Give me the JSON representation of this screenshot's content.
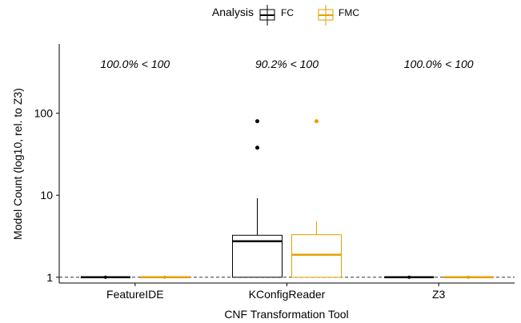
{
  "chart_data": {
    "type": "boxplot",
    "xlabel": "CNF Transformation Tool",
    "ylabel": "Model Count (log10, rel. to Z3)",
    "yscale": "log10",
    "ylim": [
      0.85,
      700
    ],
    "yticks": [
      {
        "value": 1,
        "label": "1"
      },
      {
        "value": 10,
        "label": "10"
      },
      {
        "value": 100,
        "label": "100"
      }
    ],
    "reference_line": {
      "value": 1,
      "style": "dashed"
    },
    "grid": false,
    "legend": {
      "title": "Analysis",
      "position": "top",
      "entries": [
        {
          "name": "FC",
          "color": "#000000"
        },
        {
          "name": "FMC",
          "color": "#E69F00"
        }
      ]
    },
    "categories": [
      "FeatureIDE",
      "KConfigReader",
      "Z3"
    ],
    "annotations": [
      "100.0% < 100",
      "90.2% < 100",
      "100.0% < 100"
    ],
    "series": [
      {
        "name": "FC",
        "color": "#000000",
        "boxes": [
          {
            "min": 1,
            "q1": 1,
            "median": 1,
            "q3": 1,
            "max": 1,
            "outliers": []
          },
          {
            "min": 1,
            "q1": 1,
            "median": 2.75,
            "q3": 3.25,
            "max": 9.2,
            "outliers": [
              38,
              80
            ]
          },
          {
            "min": 1,
            "q1": 1,
            "median": 1,
            "q3": 1,
            "max": 1,
            "outliers": []
          }
        ]
      },
      {
        "name": "FMC",
        "color": "#E69F00",
        "boxes": [
          {
            "min": 1,
            "q1": 1,
            "median": 1,
            "q3": 1,
            "max": 1,
            "outliers": []
          },
          {
            "min": 1,
            "q1": 1,
            "median": 1.88,
            "q3": 3.3,
            "max": 4.8,
            "outliers": [
              80
            ]
          },
          {
            "min": 1,
            "q1": 1,
            "median": 1,
            "q3": 1,
            "max": 1,
            "outliers": []
          }
        ]
      }
    ]
  }
}
